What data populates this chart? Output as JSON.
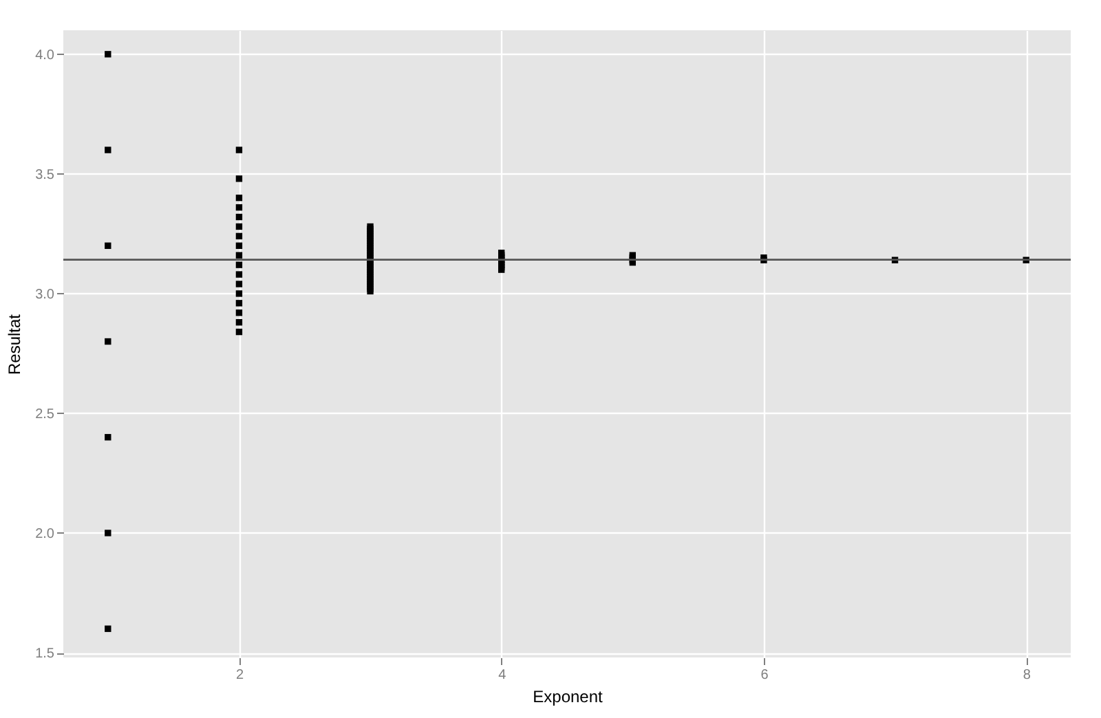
{
  "chart_data": {
    "type": "scatter",
    "xlabel": "Exponent",
    "ylabel": "Resultat",
    "x": [
      1,
      1,
      1,
      1,
      1,
      1,
      1,
      2,
      2,
      2,
      2,
      2,
      2,
      2,
      2,
      2,
      2,
      2,
      2,
      2,
      2,
      2,
      2,
      2,
      3,
      3,
      3,
      3,
      3,
      3,
      3,
      3,
      3,
      3,
      3,
      3,
      3,
      3,
      3,
      3,
      3,
      3,
      3,
      3,
      3,
      3,
      3,
      3,
      3,
      3,
      3,
      3,
      4,
      4,
      4,
      4,
      4,
      4,
      4,
      4,
      5,
      5,
      5,
      5,
      6,
      6,
      7,
      8
    ],
    "values": [
      4.0,
      3.6,
      3.2,
      2.8,
      2.4,
      2.0,
      1.6,
      3.6,
      3.48,
      3.4,
      3.36,
      3.32,
      3.28,
      3.24,
      3.2,
      3.16,
      3.12,
      3.08,
      3.04,
      3.0,
      2.96,
      2.92,
      2.88,
      2.84,
      3.28,
      3.27,
      3.26,
      3.25,
      3.24,
      3.23,
      3.22,
      3.21,
      3.2,
      3.19,
      3.18,
      3.17,
      3.16,
      3.15,
      3.14,
      3.13,
      3.12,
      3.11,
      3.1,
      3.09,
      3.08,
      3.07,
      3.06,
      3.05,
      3.04,
      3.03,
      3.02,
      3.01,
      3.17,
      3.16,
      3.15,
      3.14,
      3.13,
      3.12,
      3.11,
      3.1,
      3.16,
      3.15,
      3.14,
      3.13,
      3.15,
      3.14,
      3.14,
      3.14
    ],
    "color": "#000000",
    "marker": "square",
    "xlim": [
      0.66,
      8.34
    ],
    "xticks": [
      2,
      4,
      6,
      8
    ],
    "ylim": [
      1.48,
      4.1
    ],
    "yticks": [
      1.5,
      {
        "value": 2,
        "label": "2.0"
      },
      2.5,
      {
        "value": 3,
        "label": "3.0"
      },
      3.5,
      {
        "value": 4,
        "label": "4.0"
      }
    ],
    "ref_lines": [
      {
        "axis": "y",
        "value": 3.14159,
        "color": "#555555"
      }
    ],
    "grid": true
  }
}
